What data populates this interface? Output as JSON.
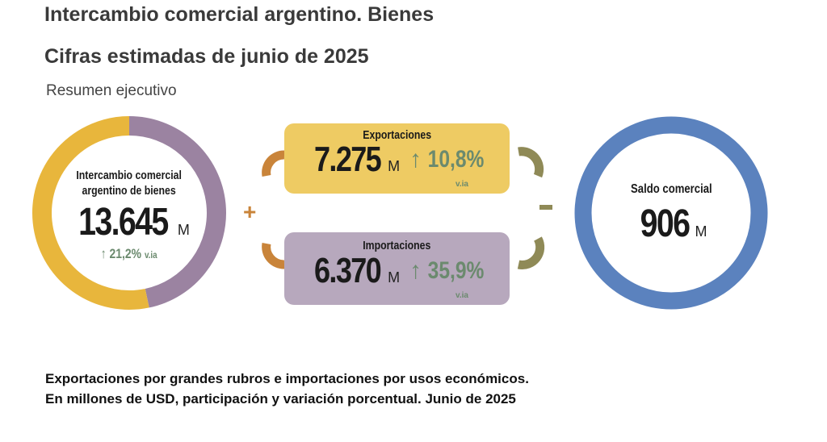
{
  "header": {
    "title": "Intercambio comercial argentino. Bienes",
    "subtitle": "Cifras estimadas de junio de 2025",
    "section": "Resumen ejecutivo"
  },
  "total": {
    "label_line1": "Intercambio comercial",
    "label_line2": "argentino de bienes",
    "value": "13.645",
    "unit": "M",
    "change": "21,2%",
    "change_suffix": "v.ia",
    "arrow": "arrow-up-icon"
  },
  "exports": {
    "label": "Exportaciones",
    "value": "7.275",
    "unit": "M",
    "change": "10,8%",
    "change_suffix": "v.ia",
    "share_of_total": 53.3,
    "color": "#e8b63c"
  },
  "imports": {
    "label": "Importaciones",
    "value": "6.370",
    "unit": "M",
    "change": "35,9%",
    "change_suffix": "v.ia",
    "share_of_total": 46.7,
    "color": "#9b83a1"
  },
  "operators": {
    "plus": "+",
    "minus": "-"
  },
  "balance": {
    "label": "Saldo comercial",
    "value": "906",
    "unit": "M",
    "color": "#5b82be"
  },
  "footer": {
    "line1": "Exportaciones por grandes rubros e importaciones por usos económicos.",
    "line2": "En millones de USD, participación y variación porcentual. Junio de 2025"
  },
  "colors": {
    "export_box": "#eecb63",
    "import_box": "#b7a8bd",
    "plus_bracket": "#c9843a",
    "minus_bracket": "#8f8a57",
    "green": "#6b8a6e"
  }
}
